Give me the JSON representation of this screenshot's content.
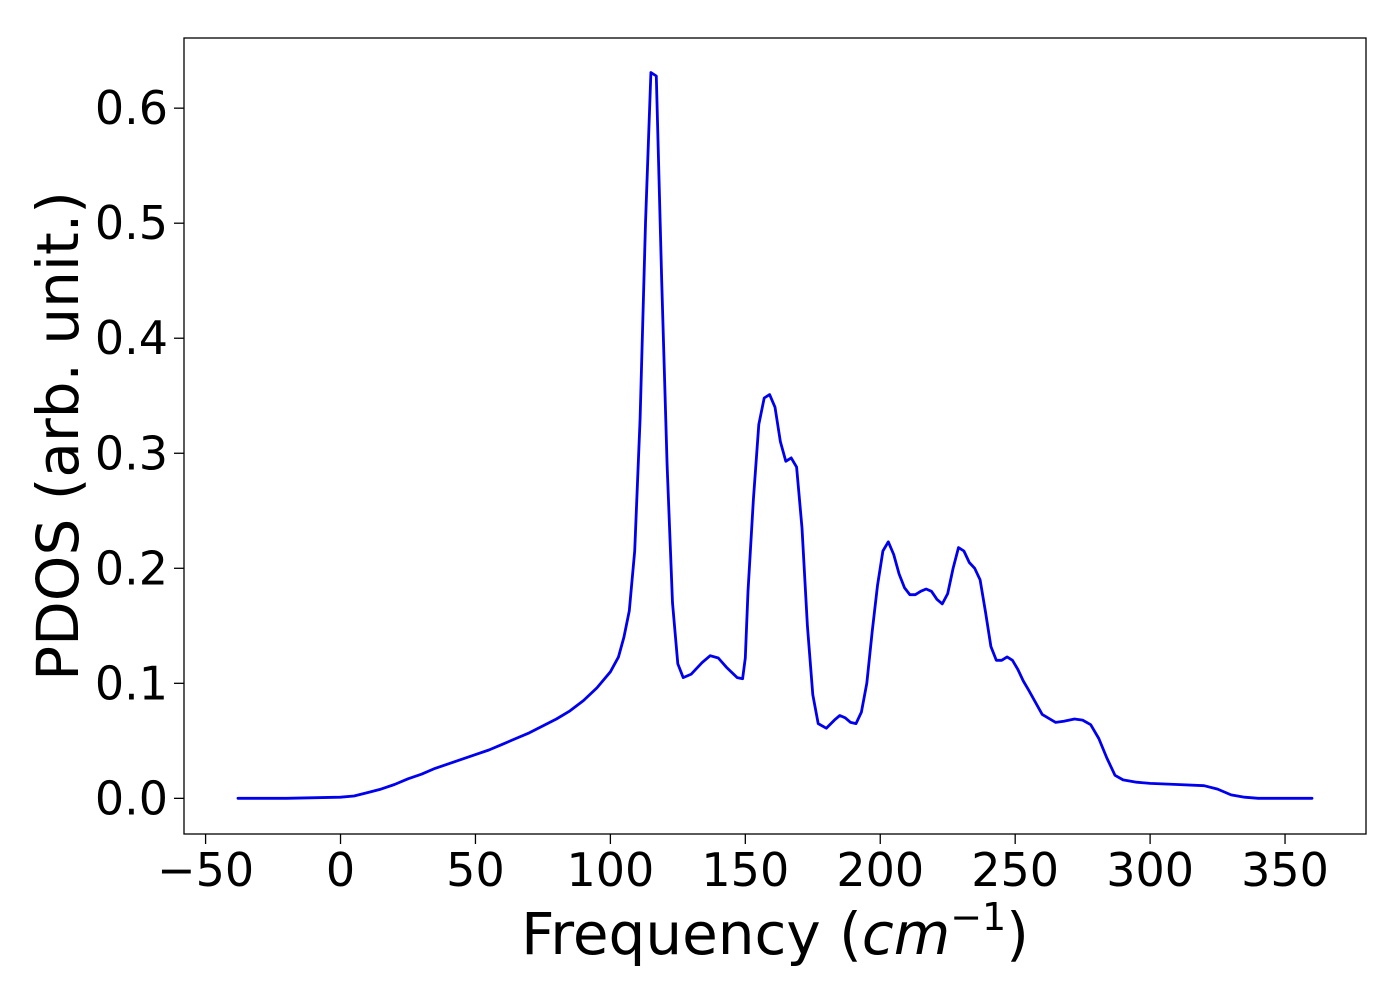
{
  "chart_data": {
    "type": "line",
    "title": "",
    "xlabel": "Frequency",
    "xlabel_unit_open": " (",
    "xlabel_unit_base": "cm",
    "xlabel_unit_exp": "−1",
    "xlabel_unit_close": ")",
    "ylabel": "PDOS (arb. unit.)",
    "xlim": [
      -58,
      380
    ],
    "ylim": [
      -0.031,
      0.661
    ],
    "xticks": [
      -50,
      0,
      50,
      100,
      150,
      200,
      250,
      300,
      350
    ],
    "xtick_labels": [
      "−50",
      "0",
      "50",
      "100",
      "150",
      "200",
      "250",
      "300",
      "350"
    ],
    "yticks": [
      0.0,
      0.1,
      0.2,
      0.3,
      0.4,
      0.5,
      0.6
    ],
    "ytick_labels": [
      "0.0",
      "0.1",
      "0.2",
      "0.3",
      "0.4",
      "0.5",
      "0.6"
    ],
    "grid": false,
    "legend": "none",
    "colors": {
      "line": "#0000ee",
      "axes": "#000000"
    },
    "series": [
      {
        "x": [
          -38,
          -20,
          0,
          5,
          10,
          15,
          20,
          25,
          30,
          35,
          40,
          45,
          50,
          55,
          60,
          65,
          70,
          75,
          80,
          85,
          90,
          95,
          100,
          103,
          105,
          107,
          109,
          111,
          113,
          115,
          117,
          119,
          121,
          123,
          125,
          127,
          130,
          134,
          137,
          140,
          143,
          147,
          149,
          150,
          151,
          153,
          155,
          157,
          159,
          161,
          163,
          165,
          167,
          169,
          171,
          173,
          175,
          177,
          180,
          183,
          185,
          187,
          189,
          191,
          193,
          195,
          197,
          199,
          201,
          203,
          205,
          207,
          209,
          211,
          213,
          215,
          217,
          219,
          221,
          223,
          225,
          227,
          229,
          231,
          233,
          235,
          237,
          239,
          241,
          243,
          245,
          247,
          249,
          251,
          253,
          255,
          260,
          265,
          268,
          272,
          275,
          278,
          281,
          284,
          287,
          290,
          295,
          300,
          310,
          320,
          325,
          330,
          335,
          340,
          360
        ],
        "y": [
          0.0,
          0.0,
          0.001,
          0.002,
          0.005,
          0.008,
          0.012,
          0.017,
          0.021,
          0.026,
          0.03,
          0.034,
          0.038,
          0.042,
          0.047,
          0.052,
          0.057,
          0.063,
          0.069,
          0.076,
          0.085,
          0.096,
          0.11,
          0.123,
          0.14,
          0.163,
          0.215,
          0.33,
          0.5,
          0.631,
          0.628,
          0.45,
          0.29,
          0.17,
          0.117,
          0.105,
          0.108,
          0.118,
          0.124,
          0.122,
          0.114,
          0.105,
          0.104,
          0.122,
          0.18,
          0.26,
          0.325,
          0.348,
          0.351,
          0.34,
          0.31,
          0.293,
          0.296,
          0.288,
          0.235,
          0.15,
          0.09,
          0.065,
          0.061,
          0.068,
          0.072,
          0.07,
          0.066,
          0.065,
          0.075,
          0.1,
          0.145,
          0.185,
          0.215,
          0.223,
          0.212,
          0.195,
          0.183,
          0.177,
          0.177,
          0.18,
          0.182,
          0.18,
          0.173,
          0.169,
          0.178,
          0.2,
          0.218,
          0.215,
          0.205,
          0.2,
          0.19,
          0.162,
          0.132,
          0.12,
          0.12,
          0.123,
          0.12,
          0.112,
          0.102,
          0.094,
          0.073,
          0.066,
          0.067,
          0.069,
          0.068,
          0.064,
          0.052,
          0.035,
          0.02,
          0.016,
          0.014,
          0.013,
          0.012,
          0.011,
          0.008,
          0.003,
          0.001,
          0.0,
          0.0
        ]
      }
    ]
  }
}
